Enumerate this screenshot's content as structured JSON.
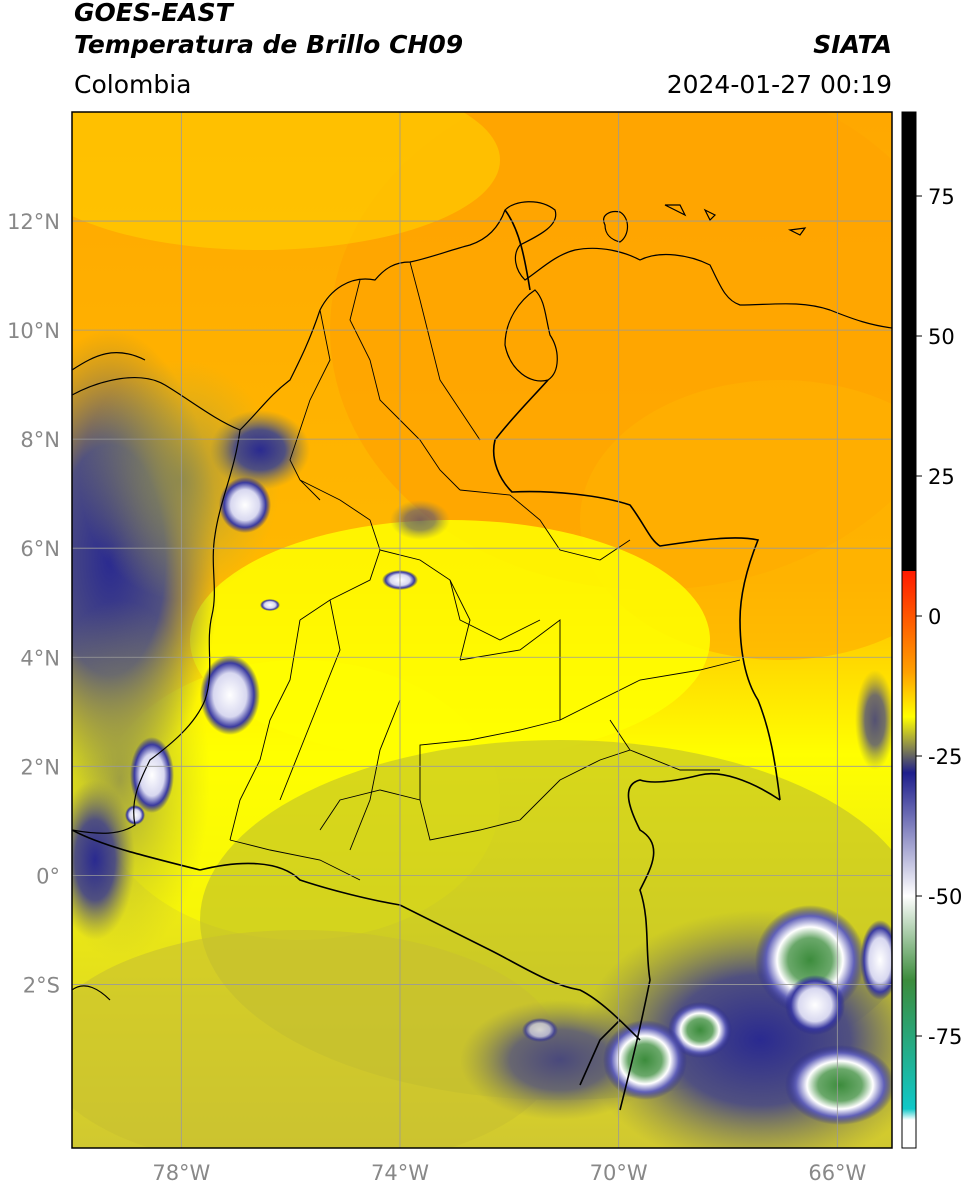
{
  "header": {
    "satellite": "GOES-EAST",
    "product": "Temperatura de Brillo CH09",
    "agency": "SIATA",
    "region": "Colombia",
    "timestamp": "2024-01-27 00:19"
  },
  "map": {
    "lat_labels": [
      "12°N",
      "10°N",
      "8°N",
      "6°N",
      "4°N",
      "2°N",
      "0°",
      "2°S"
    ],
    "lon_labels": [
      "78°W",
      "74°W",
      "70°W",
      "66°W"
    ],
    "extent": {
      "lon_min": -80,
      "lon_max": -65,
      "lat_min": -5,
      "lat_max": 14
    }
  },
  "colorbar": {
    "ticks": [
      "75",
      "50",
      "25",
      "0",
      "-25",
      "-50",
      "-75"
    ],
    "range": [
      -95,
      90
    ],
    "colors": {
      "hot": "#000000",
      "red": "#ff1a00",
      "orange": "#ffa000",
      "yellow": "#ffff00",
      "olive": "#a8a83a",
      "navy": "#1e1e8c",
      "white": "#ffffff",
      "green": "#3c8c3c",
      "teal": "#10c8c8"
    }
  },
  "colors": {
    "axis": "#000000",
    "grid": "#9a9a9a",
    "tick_label": "#888888"
  }
}
